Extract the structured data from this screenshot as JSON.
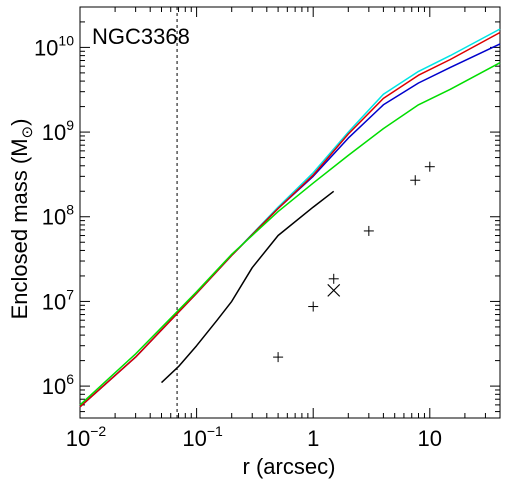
{
  "chart_data": {
    "type": "line",
    "annotation": "NGC3368",
    "xlabel": "r (arcsec)",
    "ylabel": "Enclosed mass (M",
    "ylabel_symbol": "⊙",
    "ylabel_close": ")",
    "xscale": "log",
    "yscale": "log",
    "xlim": [
      0.01,
      40
    ],
    "ylim": [
      420000,
      30000000000
    ],
    "x_ticks": [
      {
        "value": 0.01,
        "base": "10",
        "exp": "−2"
      },
      {
        "value": 0.1,
        "base": "10",
        "exp": "−1"
      },
      {
        "value": 1,
        "base": "1",
        "exp": ""
      },
      {
        "value": 10,
        "base": "10",
        "exp": ""
      }
    ],
    "y_ticks": [
      {
        "value": 1000000,
        "base": "10",
        "exp": "6"
      },
      {
        "value": 10000000,
        "base": "10",
        "exp": "7"
      },
      {
        "value": 100000000,
        "base": "10",
        "exp": "8"
      },
      {
        "value": 1000000000,
        "base": "10",
        "exp": "9"
      },
      {
        "value": 10000000000,
        "base": "10",
        "exp": "10"
      }
    ],
    "vline": {
      "x": 0.068,
      "style": "dashed"
    },
    "series": [
      {
        "color": "#00e5e5",
        "x": [
          0.01,
          0.03,
          0.1,
          0.2,
          0.5,
          1,
          2,
          4,
          8,
          15,
          40
        ],
        "y": [
          570000,
          2200000,
          12500000,
          35000000,
          130000000,
          330000000,
          1000000000,
          2800000000,
          5200000000,
          8000000000,
          16500000000
        ]
      },
      {
        "color": "#0000cc",
        "x": [
          0.01,
          0.03,
          0.1,
          0.2,
          0.5,
          1,
          2,
          4,
          8,
          15,
          40
        ],
        "y": [
          570000,
          2200000,
          12500000,
          35000000,
          125000000,
          300000000,
          850000000,
          2100000000,
          3800000000,
          5800000000,
          11000000000
        ]
      },
      {
        "color": "#dd0000",
        "x": [
          0.01,
          0.03,
          0.1,
          0.2,
          0.5,
          1,
          2,
          4,
          8,
          15,
          40
        ],
        "y": [
          570000,
          2200000,
          12500000,
          35000000,
          125000000,
          310000000,
          950000000,
          2500000000,
          4700000000,
          7200000000,
          15000000000
        ]
      },
      {
        "color": "#00dd00",
        "x": [
          0.01,
          0.03,
          0.1,
          0.2,
          0.5,
          1,
          2,
          4,
          8,
          15,
          40
        ],
        "y": [
          600000,
          2400000,
          13000000,
          36000000,
          115000000,
          250000000,
          530000000,
          1100000000,
          2100000000,
          3200000000,
          6600000000
        ]
      },
      {
        "color": "#000000",
        "x": [
          0.05,
          0.07,
          0.1,
          0.15,
          0.2,
          0.3,
          0.5,
          1,
          1.5
        ],
        "y": [
          1100000,
          1700000,
          3000000,
          6000000,
          10000000,
          25000000,
          60000000,
          130000000,
          200000000
        ]
      }
    ],
    "points": [
      {
        "marker": "plus",
        "x": 0.5,
        "y": 2200000
      },
      {
        "marker": "plus",
        "x": 1.0,
        "y": 8700000
      },
      {
        "marker": "plus",
        "x": 1.5,
        "y": 18500000
      },
      {
        "marker": "plus",
        "x": 3.0,
        "y": 68000000
      },
      {
        "marker": "plus",
        "x": 7.5,
        "y": 270000000
      },
      {
        "marker": "plus",
        "x": 10.0,
        "y": 390000000
      },
      {
        "marker": "cross",
        "x": 1.5,
        "y": 13500000
      }
    ]
  }
}
